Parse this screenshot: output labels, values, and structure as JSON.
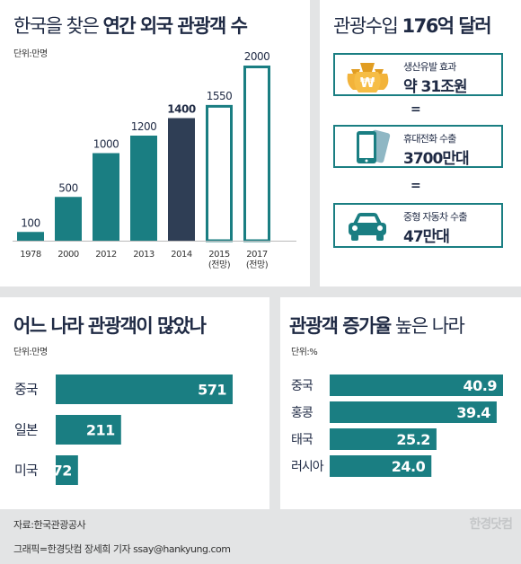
{
  "colors": {
    "teal": "#1a7e82",
    "navy": "#2f3e55",
    "bg": "#e3e4e5",
    "gold": "#f2b33a"
  },
  "panel1": {
    "title_light": "한국을 찾은",
    "title_bold": "연간 외국 관광객 수",
    "unit": "단위:만명"
  },
  "panel2": {
    "title_light": "관광수입",
    "title_bold": "176억 달러",
    "items": [
      {
        "icon": "money-bag-icon",
        "line1": "생산유발 효과",
        "line2": "약 31조원"
      },
      {
        "icon": "mobile-phone-icon",
        "line1": "휴대전화 수출",
        "line2": "3700만대"
      },
      {
        "icon": "car-icon",
        "line1": "중형 자동차 수출",
        "line2": "47만대"
      }
    ],
    "equals": "="
  },
  "panel3": {
    "title": "어느 나라 관광객이 많았나",
    "unit": "단위:만명"
  },
  "panel4": {
    "title_bold": "관광객 증가율",
    "title_light": "높은 나라",
    "unit": "단위:%"
  },
  "footer": {
    "source": "자료:한국관광공사",
    "credit": "그래픽=한경닷컴 장세희 기자 ssay@hankyung.com",
    "watermark": "한경닷컴"
  },
  "chart_data": [
    {
      "type": "bar",
      "title": "한국을 찾은 연간 외국 관광객 수",
      "unit": "단위:만명",
      "categories": [
        "1978",
        "2000",
        "2012",
        "2013",
        "2014",
        "2015 (전망)",
        "2017 (전망)"
      ],
      "category_lines": [
        [
          "1978"
        ],
        [
          "2000"
        ],
        [
          "2012"
        ],
        [
          "2013"
        ],
        [
          "2014"
        ],
        [
          "2015",
          "(전망)"
        ],
        [
          "2017",
          "(전망)"
        ]
      ],
      "values": [
        100,
        500,
        1000,
        1200,
        1400,
        1550,
        2000
      ],
      "labels": [
        "100",
        "500",
        "1000",
        "1200",
        "1400",
        "1550",
        "2000"
      ],
      "styles": [
        "solid",
        "solid",
        "solid",
        "solid",
        "highlight",
        "outline",
        "outline"
      ],
      "ylim": [
        0,
        2000
      ]
    },
    {
      "type": "bar",
      "orientation": "horizontal",
      "title": "어느 나라 관광객이 많았나",
      "unit": "단위:만명",
      "categories": [
        "중국",
        "일본",
        "미국"
      ],
      "values": [
        571,
        211,
        72
      ],
      "labels": [
        "571",
        "211",
        "72"
      ],
      "xlim": [
        0,
        571
      ]
    },
    {
      "type": "bar",
      "orientation": "horizontal",
      "title": "관광객 증가율 높은 나라",
      "unit": "단위:%",
      "categories": [
        "중국",
        "홍콩",
        "태국",
        "러시아"
      ],
      "values": [
        40.9,
        39.4,
        25.2,
        24.0
      ],
      "labels": [
        "40.9",
        "39.4",
        "25.2",
        "24.0"
      ],
      "xlim": [
        0,
        40.9
      ]
    }
  ]
}
